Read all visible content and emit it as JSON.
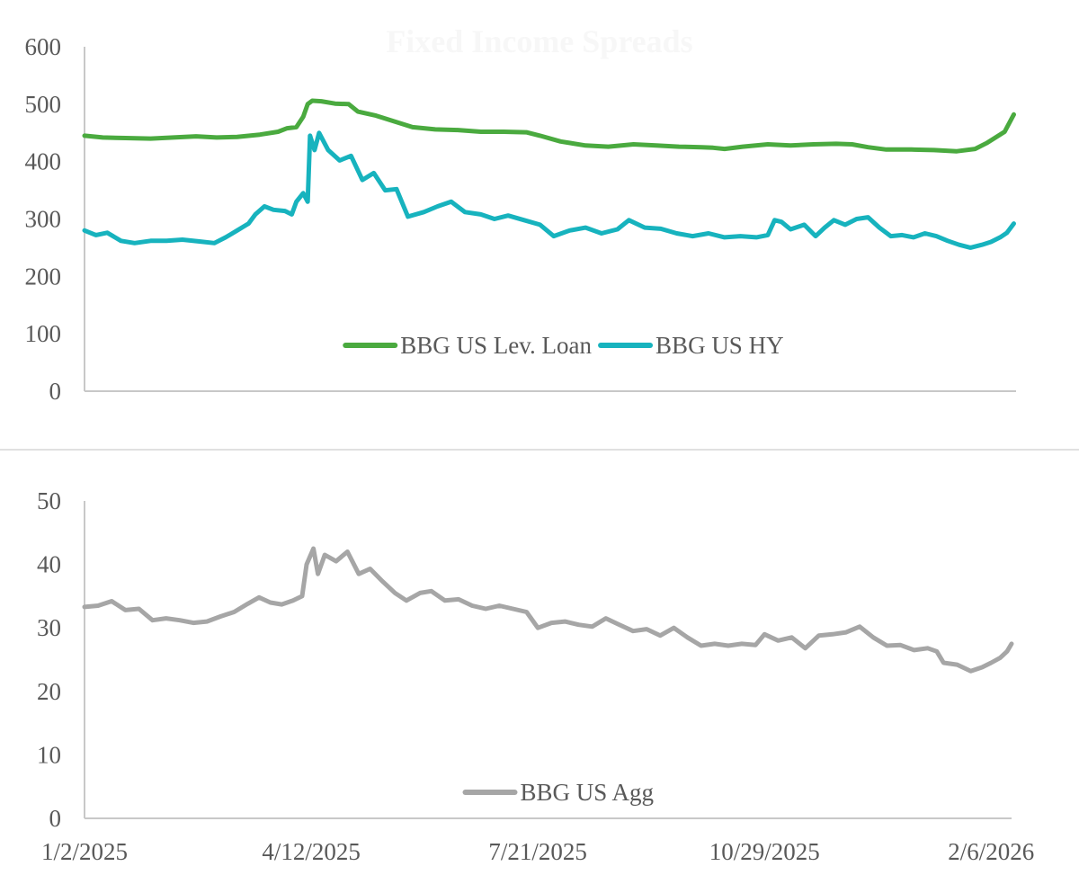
{
  "colors": {
    "lev_loan": "#4aaa3f",
    "hy": "#17b3be",
    "agg": "#a6a6a6",
    "axis_text": "#595959",
    "axis_line": "#c8c8c8"
  },
  "chart_data": [
    {
      "type": "line",
      "title": "Fixed Income Spreads",
      "ylim": [
        0,
        600
      ],
      "yticks": [
        "0",
        "100",
        "200",
        "300",
        "400",
        "500",
        "600"
      ],
      "xlim": [
        "1/2/2025",
        "2/15/2026"
      ],
      "legend_position": "bottom-center",
      "grid": false,
      "series": [
        {
          "name": "BBG US Lev. Loan",
          "color": "#4aaa3f",
          "points": [
            [
              "1/2/2025",
              445
            ],
            [
              "1/10/2025",
              442
            ],
            [
              "1/20/2025",
              441
            ],
            [
              "1/31/2025",
              440
            ],
            [
              "2/10/2025",
              442
            ],
            [
              "2/20/2025",
              444
            ],
            [
              "3/1/2025",
              442
            ],
            [
              "3/10/2025",
              443
            ],
            [
              "3/20/2025",
              447
            ],
            [
              "3/28/2025",
              452
            ],
            [
              "4/1/2025",
              458
            ],
            [
              "4/5/2025",
              460
            ],
            [
              "4/8/2025",
              478
            ],
            [
              "4/10/2025",
              500
            ],
            [
              "4/12/2025",
              506
            ],
            [
              "4/16/2025",
              505
            ],
            [
              "4/22/2025",
              501
            ],
            [
              "4/28/2025",
              500
            ],
            [
              "5/2/2025",
              487
            ],
            [
              "5/10/2025",
              480
            ],
            [
              "5/18/2025",
              470
            ],
            [
              "5/26/2025",
              460
            ],
            [
              "6/5/2025",
              456
            ],
            [
              "6/15/2025",
              455
            ],
            [
              "6/25/2025",
              452
            ],
            [
              "7/5/2025",
              452
            ],
            [
              "7/15/2025",
              451
            ],
            [
              "7/21/2025",
              445
            ],
            [
              "7/30/2025",
              435
            ],
            [
              "8/10/2025",
              428
            ],
            [
              "8/20/2025",
              426
            ],
            [
              "8/31/2025",
              430
            ],
            [
              "9/10/2025",
              428
            ],
            [
              "9/20/2025",
              426
            ],
            [
              "9/30/2025",
              425
            ],
            [
              "10/5/2025",
              424
            ],
            [
              "10/10/2025",
              422
            ],
            [
              "10/18/2025",
              426
            ],
            [
              "10/29/2025",
              430
            ],
            [
              "11/8/2025",
              428
            ],
            [
              "11/18/2025",
              430
            ],
            [
              "11/28/2025",
              431
            ],
            [
              "12/5/2025",
              430
            ],
            [
              "12/12/2025",
              425
            ],
            [
              "12/20/2025",
              421
            ],
            [
              "12/31/2025",
              421
            ],
            [
              "1/10/2026",
              420
            ],
            [
              "1/20/2026",
              418
            ],
            [
              "1/28/2026",
              422
            ],
            [
              "2/2/2026",
              432
            ],
            [
              "2/6/2026",
              442
            ],
            [
              "2/10/2026",
              452
            ],
            [
              "2/14/2026",
              482
            ]
          ]
        },
        {
          "name": "BBG US HY",
          "color": "#17b3be",
          "points": [
            [
              "1/2/2025",
              280
            ],
            [
              "1/7/2025",
              272
            ],
            [
              "1/12/2025",
              276
            ],
            [
              "1/18/2025",
              262
            ],
            [
              "1/24/2025",
              258
            ],
            [
              "1/31/2025",
              262
            ],
            [
              "2/7/2025",
              262
            ],
            [
              "2/14/2025",
              264
            ],
            [
              "2/21/2025",
              261
            ],
            [
              "2/28/2025",
              258
            ],
            [
              "3/5/2025",
              268
            ],
            [
              "3/10/2025",
              280
            ],
            [
              "3/15/2025",
              292
            ],
            [
              "3/18/2025",
              308
            ],
            [
              "3/22/2025",
              322
            ],
            [
              "3/26/2025",
              316
            ],
            [
              "3/31/2025",
              314
            ],
            [
              "4/3/2025",
              308
            ],
            [
              "4/5/2025",
              330
            ],
            [
              "4/8/2025",
              345
            ],
            [
              "4/10/2025",
              330
            ],
            [
              "4/11/2025",
              445
            ],
            [
              "4/13/2025",
              420
            ],
            [
              "4/15/2025",
              450
            ],
            [
              "4/19/2025",
              420
            ],
            [
              "4/24/2025",
              402
            ],
            [
              "4/29/2025",
              410
            ],
            [
              "5/4/2025",
              368
            ],
            [
              "5/9/2025",
              380
            ],
            [
              "5/14/2025",
              350
            ],
            [
              "5/19/2025",
              352
            ],
            [
              "5/24/2025",
              304
            ],
            [
              "5/31/2025",
              312
            ],
            [
              "6/6/2025",
              322
            ],
            [
              "6/12/2025",
              330
            ],
            [
              "6/18/2025",
              312
            ],
            [
              "6/25/2025",
              308
            ],
            [
              "7/1/2025",
              300
            ],
            [
              "7/7/2025",
              306
            ],
            [
              "7/14/2025",
              298
            ],
            [
              "7/21/2025",
              290
            ],
            [
              "7/27/2025",
              270
            ],
            [
              "8/3/2025",
              280
            ],
            [
              "8/10/2025",
              285
            ],
            [
              "8/17/2025",
              275
            ],
            [
              "8/24/2025",
              282
            ],
            [
              "8/29/2025",
              298
            ],
            [
              "9/5/2025",
              285
            ],
            [
              "9/12/2025",
              283
            ],
            [
              "9/19/2025",
              275
            ],
            [
              "9/26/2025",
              270
            ],
            [
              "10/3/2025",
              275
            ],
            [
              "10/10/2025",
              268
            ],
            [
              "10/17/2025",
              270
            ],
            [
              "10/24/2025",
              268
            ],
            [
              "10/29/2025",
              272
            ],
            [
              "11/1/2025",
              298
            ],
            [
              "11/4/2025",
              295
            ],
            [
              "11/8/2025",
              282
            ],
            [
              "11/14/2025",
              290
            ],
            [
              "11/19/2025",
              270
            ],
            [
              "11/23/2025",
              285
            ],
            [
              "11/27/2025",
              298
            ],
            [
              "12/2/2025",
              290
            ],
            [
              "12/7/2025",
              300
            ],
            [
              "12/12/2025",
              303
            ],
            [
              "12/17/2025",
              285
            ],
            [
              "12/22/2025",
              270
            ],
            [
              "12/27/2025",
              272
            ],
            [
              "1/1/2026",
              268
            ],
            [
              "1/6/2026",
              275
            ],
            [
              "1/11/2026",
              270
            ],
            [
              "1/16/2026",
              262
            ],
            [
              "1/21/2026",
              255
            ],
            [
              "1/26/2026",
              250
            ],
            [
              "1/31/2026",
              255
            ],
            [
              "2/4/2026",
              260
            ],
            [
              "2/8/2026",
              268
            ],
            [
              "2/11/2026",
              276
            ],
            [
              "2/14/2026",
              292
            ]
          ]
        }
      ]
    },
    {
      "type": "line",
      "ylim": [
        0,
        50
      ],
      "yticks": [
        "0",
        "10",
        "20",
        "30",
        "40",
        "50"
      ],
      "xlim": [
        "1/2/2025",
        "2/15/2026"
      ],
      "xticks": [
        "1/2/2025",
        "4/12/2025",
        "7/21/2025",
        "10/29/2025",
        "2/6/2026"
      ],
      "legend_position": "bottom-center",
      "grid": false,
      "series": [
        {
          "name": "BBG US Agg",
          "color": "#a6a6a6",
          "points": [
            [
              "1/2/2025",
              33.3
            ],
            [
              "1/8/2025",
              33.5
            ],
            [
              "1/14/2025",
              34.2
            ],
            [
              "1/20/2025",
              32.8
            ],
            [
              "1/26/2025",
              33.0
            ],
            [
              "2/1/2025",
              31.2
            ],
            [
              "2/7/2025",
              31.5
            ],
            [
              "2/13/2025",
              31.2
            ],
            [
              "2/19/2025",
              30.8
            ],
            [
              "2/25/2025",
              31.0
            ],
            [
              "3/3/2025",
              31.8
            ],
            [
              "3/9/2025",
              32.5
            ],
            [
              "3/15/2025",
              33.8
            ],
            [
              "3/20/2025",
              34.8
            ],
            [
              "3/25/2025",
              34.0
            ],
            [
              "3/30/2025",
              33.7
            ],
            [
              "4/4/2025",
              34.3
            ],
            [
              "4/8/2025",
              35.0
            ],
            [
              "4/10/2025",
              40.0
            ],
            [
              "4/13/2025",
              42.5
            ],
            [
              "4/15/2025",
              38.5
            ],
            [
              "4/18/2025",
              41.5
            ],
            [
              "4/23/2025",
              40.5
            ],
            [
              "4/28/2025",
              42.0
            ],
            [
              "5/3/2025",
              38.5
            ],
            [
              "5/8/2025",
              39.3
            ],
            [
              "5/13/2025",
              37.5
            ],
            [
              "5/19/2025",
              35.5
            ],
            [
              "5/24/2025",
              34.3
            ],
            [
              "5/30/2025",
              35.5
            ],
            [
              "6/4/2025",
              35.8
            ],
            [
              "6/10/2025",
              34.3
            ],
            [
              "6/16/2025",
              34.5
            ],
            [
              "6/22/2025",
              33.5
            ],
            [
              "6/28/2025",
              33.0
            ],
            [
              "7/4/2025",
              33.5
            ],
            [
              "7/10/2025",
              33.0
            ],
            [
              "7/16/2025",
              32.5
            ],
            [
              "7/21/2025",
              30.0
            ],
            [
              "7/27/2025",
              30.8
            ],
            [
              "8/2/2025",
              31.0
            ],
            [
              "8/8/2025",
              30.5
            ],
            [
              "8/14/2025",
              30.2
            ],
            [
              "8/20/2025",
              31.5
            ],
            [
              "8/26/2025",
              30.5
            ],
            [
              "9/1/2025",
              29.5
            ],
            [
              "9/7/2025",
              29.8
            ],
            [
              "9/13/2025",
              28.8
            ],
            [
              "9/19/2025",
              30.0
            ],
            [
              "9/25/2025",
              28.5
            ],
            [
              "10/1/2025",
              27.2
            ],
            [
              "10/7/2025",
              27.5
            ],
            [
              "10/13/2025",
              27.2
            ],
            [
              "10/19/2025",
              27.5
            ],
            [
              "10/25/2025",
              27.3
            ],
            [
              "10/29/2025",
              29.0
            ],
            [
              "11/4/2025",
              28.0
            ],
            [
              "11/10/2025",
              28.5
            ],
            [
              "11/16/2025",
              26.8
            ],
            [
              "11/22/2025",
              28.8
            ],
            [
              "11/28/2025",
              29.0
            ],
            [
              "12/4/2025",
              29.3
            ],
            [
              "12/10/2025",
              30.2
            ],
            [
              "12/16/2025",
              28.5
            ],
            [
              "12/22/2025",
              27.2
            ],
            [
              "12/28/2025",
              27.3
            ],
            [
              "1/3/2026",
              26.5
            ],
            [
              "1/9/2026",
              26.8
            ],
            [
              "1/13/2026",
              26.3
            ],
            [
              "1/16/2026",
              24.5
            ],
            [
              "1/22/2026",
              24.2
            ],
            [
              "1/28/2026",
              23.2
            ],
            [
              "2/2/2026",
              23.8
            ],
            [
              "2/6/2026",
              24.5
            ],
            [
              "2/10/2026",
              25.3
            ],
            [
              "2/13/2026",
              26.3
            ],
            [
              "2/15/2026",
              27.5
            ]
          ]
        }
      ]
    }
  ]
}
